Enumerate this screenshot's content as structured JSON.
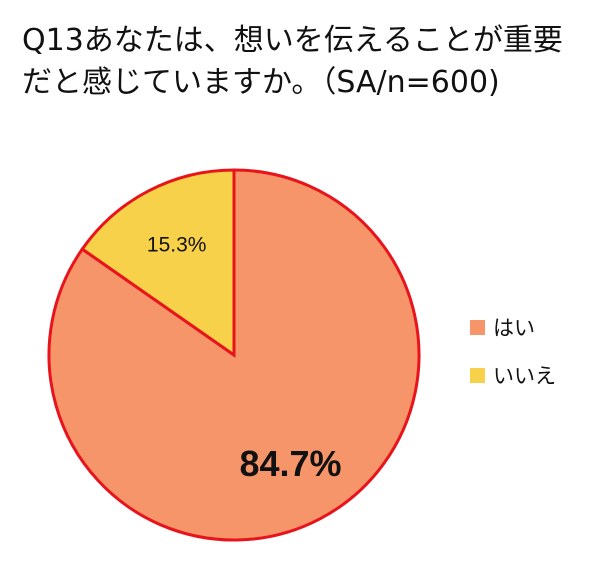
{
  "chart_data": {
    "type": "pie",
    "title_lines": [
      "Q13あなたは、想いを伝えることが重要",
      "だと感じていますか。（SA/n=600)"
    ],
    "slices": [
      {
        "label": "はい",
        "value": 84.7,
        "data_label": "84.7%",
        "color": "#f7956a"
      },
      {
        "label": "いいえ",
        "value": 15.3,
        "data_label": "15.3%",
        "color": "#f8d14a"
      }
    ],
    "border_color": "#e8141c",
    "start_angle_deg": 0,
    "direction": "clockwise",
    "legend_position": "right"
  }
}
